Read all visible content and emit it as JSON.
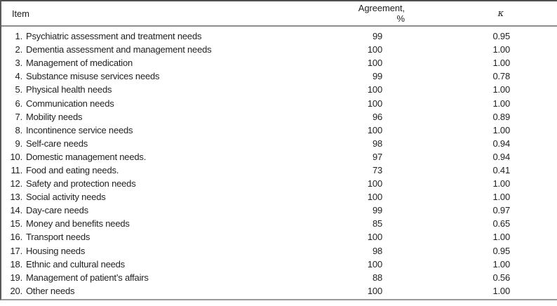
{
  "table": {
    "columns": {
      "item": "Item",
      "agreement": "Agreement, %",
      "kappa": "κ"
    },
    "rows": [
      {
        "num": "1.",
        "item": "Psychiatric assessment and treatment needs",
        "agreement": "99",
        "kappa": "0.95"
      },
      {
        "num": "2.",
        "item": "Dementia assessment and management needs",
        "agreement": "100",
        "kappa": "1.00"
      },
      {
        "num": "3.",
        "item": "Management of medication",
        "agreement": "100",
        "kappa": "1.00"
      },
      {
        "num": "4.",
        "item": "Substance misuse services needs",
        "agreement": "99",
        "kappa": "0.78"
      },
      {
        "num": "5.",
        "item": "Physical health needs",
        "agreement": "100",
        "kappa": "1.00"
      },
      {
        "num": "6.",
        "item": "Communication needs",
        "agreement": "100",
        "kappa": "1.00"
      },
      {
        "num": "7.",
        "item": "Mobility needs",
        "agreement": "96",
        "kappa": "0.89"
      },
      {
        "num": "8.",
        "item": "Incontinence service needs",
        "agreement": "100",
        "kappa": "1.00"
      },
      {
        "num": "9.",
        "item": "Self-care needs",
        "agreement": "98",
        "kappa": "0.94"
      },
      {
        "num": "10.",
        "item": "Domestic management needs.",
        "agreement": "97",
        "kappa": "0.94"
      },
      {
        "num": "11.",
        "item": "Food and eating needs.",
        "agreement": "73",
        "kappa": "0.41"
      },
      {
        "num": "12.",
        "item": "Safety and protection needs",
        "agreement": "100",
        "kappa": "1.00"
      },
      {
        "num": "13.",
        "item": "Social activity needs",
        "agreement": "100",
        "kappa": "1.00"
      },
      {
        "num": "14.",
        "item": "Day-care needs",
        "agreement": "99",
        "kappa": "0.97"
      },
      {
        "num": "15.",
        "item": "Money and benefits needs",
        "agreement": "85",
        "kappa": "0.65"
      },
      {
        "num": "16.",
        "item": "Transport needs",
        "agreement": "100",
        "kappa": "1.00"
      },
      {
        "num": "17.",
        "item": "Housing needs",
        "agreement": "98",
        "kappa": "0.95"
      },
      {
        "num": "18.",
        "item": "Ethnic and cultural needs",
        "agreement": "100",
        "kappa": "1.00"
      },
      {
        "num": "19.",
        "item": "Management of patient’s affairs",
        "agreement": "88",
        "kappa": "0.56"
      },
      {
        "num": "20.",
        "item": "Other needs",
        "agreement": "100",
        "kappa": "1.00"
      }
    ]
  }
}
